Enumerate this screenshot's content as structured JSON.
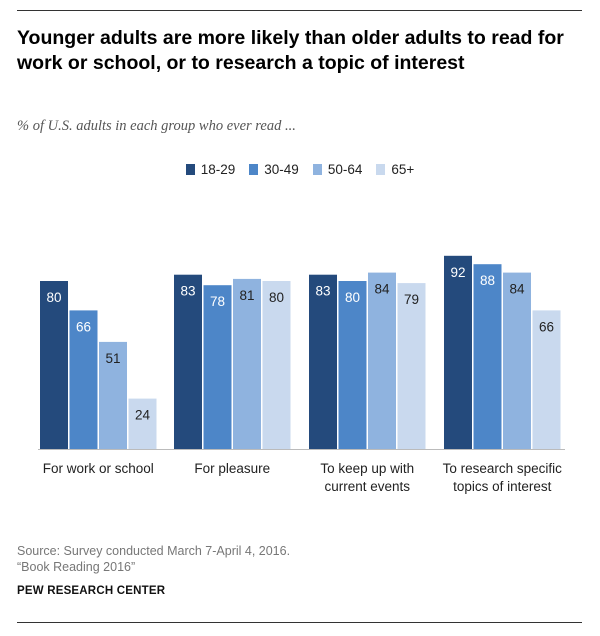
{
  "header": {
    "title": "Younger adults are more likely than older adults to read for work or school, or to research a topic of interest",
    "subtitle": "% of U.S. adults in each group who ever read ..."
  },
  "chart_data": {
    "type": "bar",
    "categories": [
      "For work or school",
      "For pleasure",
      "To keep up with current events",
      "To research specific topics of interest"
    ],
    "category_lines": [
      [
        "For work or school"
      ],
      [
        "For pleasure"
      ],
      [
        "To keep up with",
        "current events"
      ],
      [
        "To research specific",
        "topics of interest"
      ]
    ],
    "series": [
      {
        "name": "18-29",
        "color": "#244a7c",
        "values": [
          80,
          83,
          83,
          92
        ]
      },
      {
        "name": "30-49",
        "color": "#4d86c8",
        "values": [
          66,
          78,
          80,
          88
        ]
      },
      {
        "name": "50-64",
        "color": "#8fb3df",
        "values": [
          51,
          81,
          84,
          84
        ]
      },
      {
        "name": "65+",
        "color": "#c9d9ee",
        "values": [
          24,
          80,
          79,
          66
        ]
      }
    ],
    "ylim": [
      0,
      100
    ],
    "xlabel": "",
    "ylabel": "",
    "grid": false,
    "legend_position": "top-center",
    "label_colors": {
      "dark": "#ffffff",
      "light": "#222222"
    }
  },
  "footer": {
    "source_line1": "Source: Survey conducted March 7-April 4, 2016.",
    "source_line2": "“Book Reading 2016”",
    "organization": "PEW RESEARCH CENTER"
  }
}
